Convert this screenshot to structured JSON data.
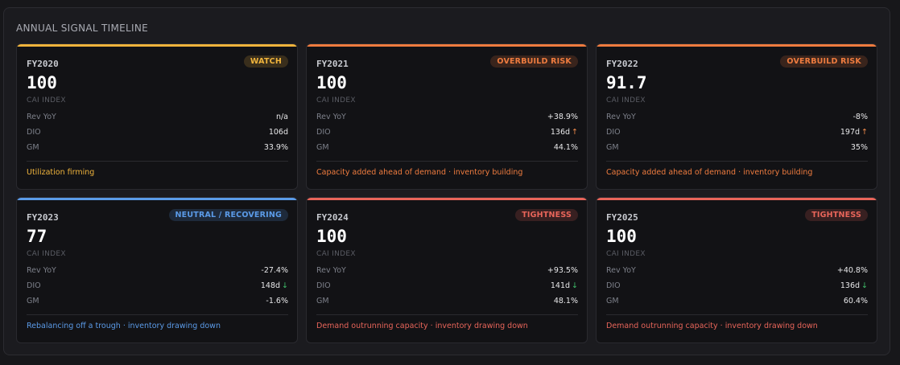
{
  "panel": {
    "title": "ANNUAL SIGNAL TIMELINE"
  },
  "colors": {
    "watch": "#f0b43c",
    "overbuild": "#ef7c3f",
    "neutral": "#5b9be8",
    "tightness": "#e8655a"
  },
  "cards": [
    {
      "fy": "FY2020",
      "badge": "WATCH",
      "value": "100",
      "value_label": "CAI INDEX",
      "metrics": [
        {
          "label": "Rev YoY",
          "value": "n/a"
        },
        {
          "label": "DIO",
          "value": "106d",
          "arrow": ""
        },
        {
          "label": "GM",
          "value": "33.9%"
        }
      ],
      "note": "Utilization firming"
    },
    {
      "fy": "FY2021",
      "badge": "OVERBUILD RISK",
      "value": "100",
      "value_label": "CAI INDEX",
      "metrics": [
        {
          "label": "Rev YoY",
          "value": "+38.9%"
        },
        {
          "label": "DIO",
          "value": "136d",
          "arrow": "↑"
        },
        {
          "label": "GM",
          "value": "44.1%"
        }
      ],
      "note": "Capacity added ahead of demand · inventory building"
    },
    {
      "fy": "FY2022",
      "badge": "OVERBUILD RISK",
      "value": "91.7",
      "value_label": "CAI INDEX",
      "metrics": [
        {
          "label": "Rev YoY",
          "value": "-8%"
        },
        {
          "label": "DIO",
          "value": "197d",
          "arrow": "↑"
        },
        {
          "label": "GM",
          "value": "35%"
        }
      ],
      "note": "Capacity added ahead of demand · inventory building"
    },
    {
      "fy": "FY2023",
      "badge": "NEUTRAL / RECOVERING",
      "value": "77",
      "value_label": "CAI INDEX",
      "metrics": [
        {
          "label": "Rev YoY",
          "value": "-27.4%"
        },
        {
          "label": "DIO",
          "value": "148d",
          "arrow": "↓"
        },
        {
          "label": "GM",
          "value": "-1.6%"
        }
      ],
      "note": "Rebalancing off a trough · inventory drawing down"
    },
    {
      "fy": "FY2024",
      "badge": "TIGHTNESS",
      "value": "100",
      "value_label": "CAI INDEX",
      "metrics": [
        {
          "label": "Rev YoY",
          "value": "+93.5%"
        },
        {
          "label": "DIO",
          "value": "141d",
          "arrow": "↓"
        },
        {
          "label": "GM",
          "value": "48.1%"
        }
      ],
      "note": "Demand outrunning capacity · inventory drawing down"
    },
    {
      "fy": "FY2025",
      "badge": "TIGHTNESS",
      "value": "100",
      "value_label": "CAI INDEX",
      "metrics": [
        {
          "label": "Rev YoY",
          "value": "+40.8%"
        },
        {
          "label": "DIO",
          "value": "136d",
          "arrow": "↓"
        },
        {
          "label": "GM",
          "value": "60.4%"
        }
      ],
      "note": "Demand outrunning capacity · inventory drawing down"
    }
  ]
}
